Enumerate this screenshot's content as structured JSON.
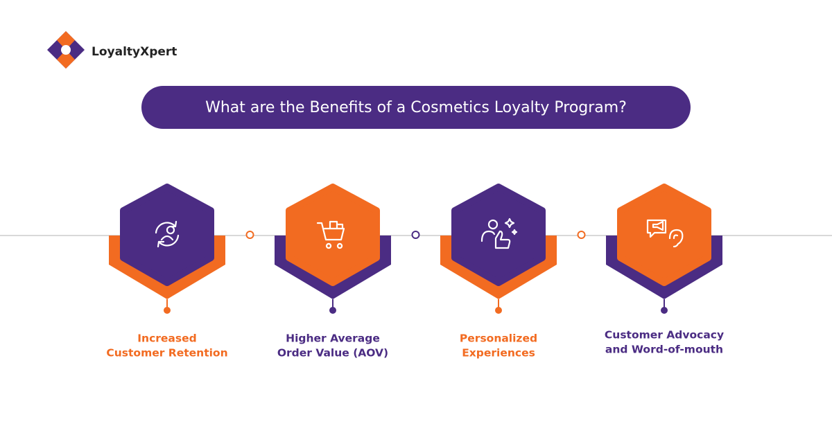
{
  "logo": {
    "text": "LoyaltyXpert"
  },
  "header": {
    "title": "What are the Benefits of a Cosmetics Loyalty Program?"
  },
  "benefits": [
    {
      "lines": [
        "Increased",
        "Customer Retention"
      ]
    },
    {
      "lines": [
        "Higher Average",
        "Order Value (AOV)"
      ]
    },
    {
      "lines": [
        "Personalized",
        "Experiences"
      ]
    },
    {
      "lines": [
        "Customer Advocacy",
        "and Word-of-mouth"
      ]
    }
  ]
}
